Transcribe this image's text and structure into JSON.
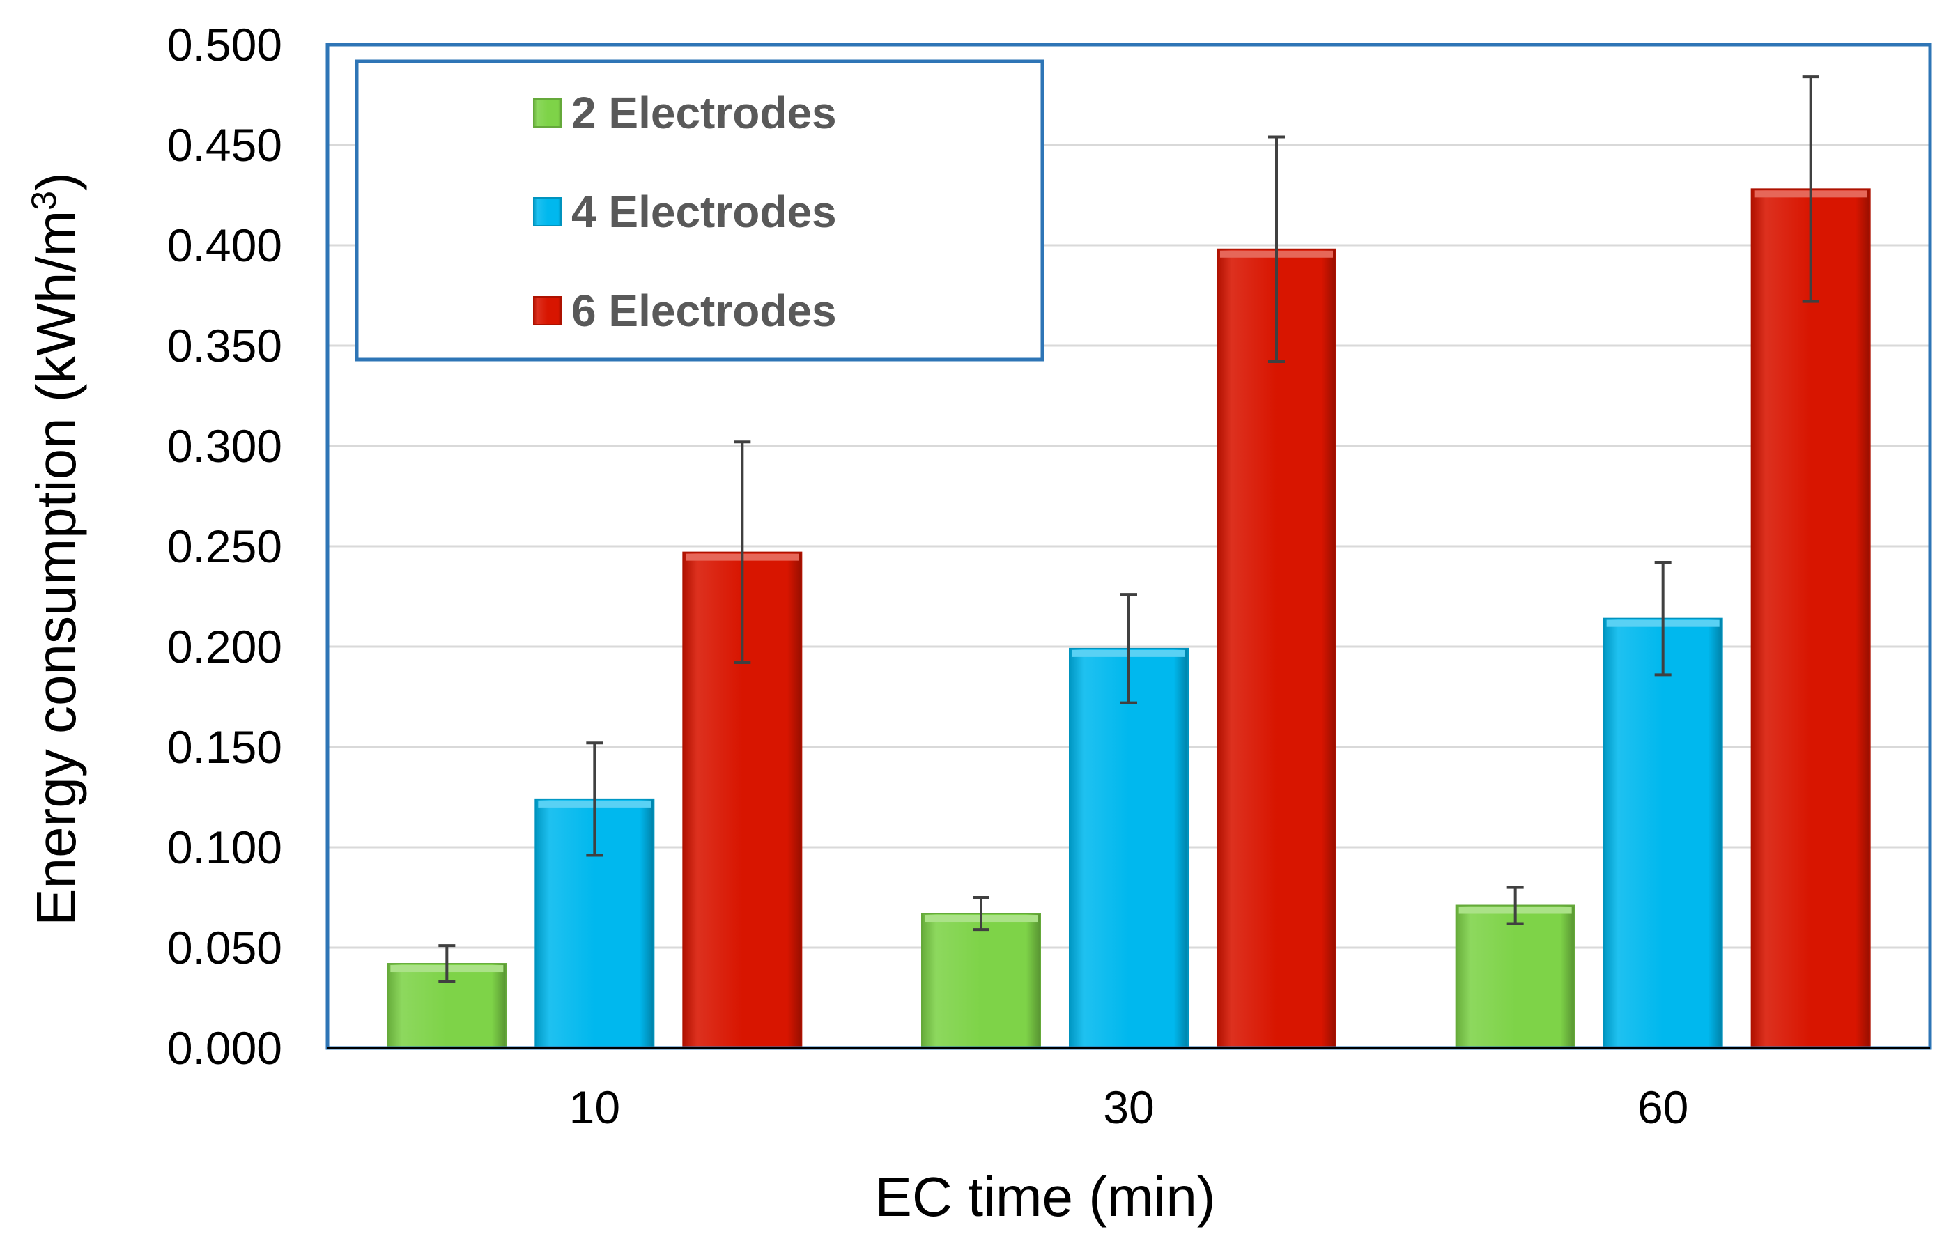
{
  "chart_data": {
    "type": "bar",
    "title": "",
    "xlabel": "EC time (min)",
    "ylabel": "Energy consumption (kWh/m",
    "ylabel_superscript": "3",
    "ylabel_suffix": ")",
    "categories": [
      "10",
      "30",
      "60"
    ],
    "ylim": [
      0,
      0.5
    ],
    "yticks": [
      0.0,
      0.05,
      0.1,
      0.15,
      0.2,
      0.25,
      0.3,
      0.35,
      0.4,
      0.45,
      0.5
    ],
    "ytick_labels": [
      "0.000",
      "0.050",
      "0.100",
      "0.150",
      "0.200",
      "0.250",
      "0.300",
      "0.350",
      "0.400",
      "0.450",
      "0.500"
    ],
    "grid": true,
    "legend_position": "top-left",
    "series": [
      {
        "name": "2 Electrodes",
        "color": "#7ED348",
        "values": [
          0.042,
          0.067,
          0.071
        ],
        "errors": [
          0.009,
          0.008,
          0.009
        ]
      },
      {
        "name": "4 Electrodes",
        "color": "#00B8EE",
        "values": [
          0.124,
          0.199,
          0.214
        ],
        "errors": [
          0.028,
          0.027,
          0.028
        ]
      },
      {
        "name": "6 Electrodes",
        "color": "#D81500",
        "values": [
          0.247,
          0.398,
          0.428
        ],
        "errors": [
          0.055,
          0.056,
          0.056
        ]
      }
    ]
  }
}
